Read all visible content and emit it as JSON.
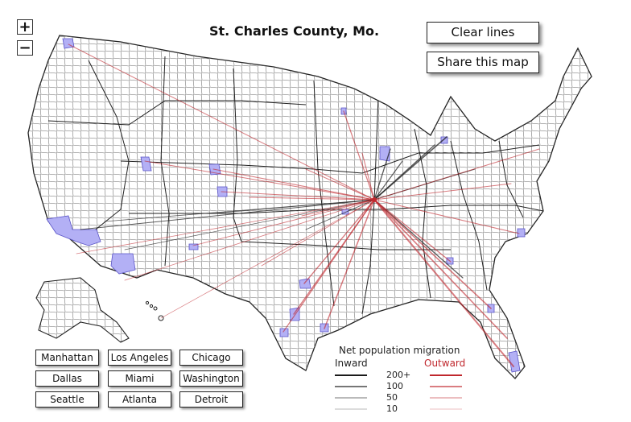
{
  "map": {
    "title": "St. Charles County, Mo.",
    "zoom_in": "+",
    "zoom_out": "−",
    "clear_lines": "Clear lines",
    "share_map": "Share this map",
    "colors": {
      "inward": "#1a1a1a",
      "outward": "#c0272d",
      "highlight_fill": "#b3b0f5",
      "county_stroke": "#555555"
    }
  },
  "cities": [
    {
      "label": "Manhattan"
    },
    {
      "label": "Los Angeles"
    },
    {
      "label": "Chicago"
    },
    {
      "label": "Dallas"
    },
    {
      "label": "Miami"
    },
    {
      "label": "Washington"
    },
    {
      "label": "Seattle"
    },
    {
      "label": "Atlanta"
    },
    {
      "label": "Detroit"
    }
  ],
  "legend": {
    "title": "Net population migration",
    "inward": "Inward",
    "outward": "Outward",
    "levels": [
      "200+",
      "100",
      "50",
      "10"
    ]
  }
}
